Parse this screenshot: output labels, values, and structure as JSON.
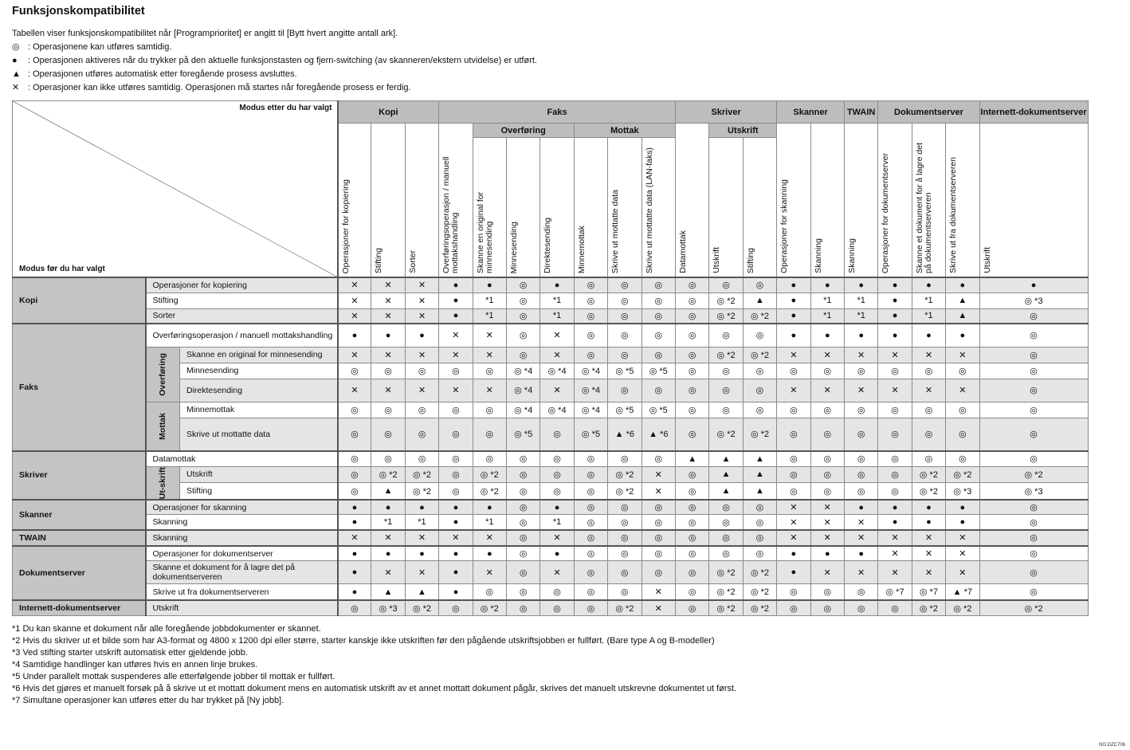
{
  "title": "Funksjonskompatibilitet",
  "intro": "Tabellen viser funksjonskompatibilitet når [Programprioritet] er angitt til [Bytt hvert angitte antall ark].",
  "legend": [
    {
      "icon": "double-circle-icon",
      "symbol": "◎",
      "text": ": Operasjonene kan utføres samtidig."
    },
    {
      "icon": "filled-circle-icon",
      "symbol": "●",
      "text": ": Operasjonen aktiveres når du trykker på den aktuelle funksjonstasten og fjern-switching (av skanneren/ekstern utvidelse) er utført."
    },
    {
      "icon": "triangle-icon",
      "symbol": "▲",
      "text": ":  Operasjonen utføres automatisk etter foregående prosess avsluttes."
    },
    {
      "icon": "cross-icon",
      "symbol": "✕",
      "text": ": Operasjoner kan ikke utføres samtidig. Operasjonen må startes når foregående prosess er ferdig."
    }
  ],
  "table": {
    "corner_after": "Modus etter du har valgt",
    "corner_before": "Modus før du har valgt",
    "columns": [
      {
        "group": "Kopi",
        "sub": null,
        "label": "Operasjoner for kopiering"
      },
      {
        "group": "Kopi",
        "sub": null,
        "label": "Stifting"
      },
      {
        "group": "Kopi",
        "sub": null,
        "label": "Sorter"
      },
      {
        "group": "Faks",
        "sub": null,
        "label": "Overføringsoperasjon / manuell mottakshandling"
      },
      {
        "group": "Faks",
        "sub": "Overføring",
        "label": "Skanne en original for minnesending"
      },
      {
        "group": "Faks",
        "sub": "Overføring",
        "label": "Minnesending"
      },
      {
        "group": "Faks",
        "sub": "Overføring",
        "label": "Direktesending"
      },
      {
        "group": "Faks",
        "sub": "Mottak",
        "label": "Minnemottak"
      },
      {
        "group": "Faks",
        "sub": "Mottak",
        "label": "Skrive ut mottatte data"
      },
      {
        "group": "Faks",
        "sub": "Mottak",
        "label": "Skrive ut mottatte data (LAN-faks)"
      },
      {
        "group": "Skriver",
        "sub": null,
        "label": "Datamottak"
      },
      {
        "group": "Skriver",
        "sub": "Utskrift",
        "label": "Utskrift"
      },
      {
        "group": "Skriver",
        "sub": "Utskrift",
        "label": "Stifting"
      },
      {
        "group": "Skanner",
        "sub": null,
        "label": "Operasjoner for skanning"
      },
      {
        "group": "Skanner",
        "sub": null,
        "label": "Skanning"
      },
      {
        "group": "TWAIN",
        "sub": null,
        "label": "Skanning"
      },
      {
        "group": "Dokumentserver",
        "sub": null,
        "label": "Operasjoner for dokumentserver"
      },
      {
        "group": "Dokumentserver",
        "sub": null,
        "label": "Skanne et dokument for å lagre det på dokumentserveren"
      },
      {
        "group": "Dokumentserver",
        "sub": null,
        "label": "Skrive ut fra dokumentserveren"
      },
      {
        "group": "Internett-dokumentserver",
        "sub": null,
        "label": "Utskrift"
      }
    ],
    "rows": [
      {
        "group": "Kopi",
        "sub": null,
        "label": "Operasjoner for kopiering",
        "cells": [
          "✕",
          "✕",
          "✕",
          "●",
          "●",
          "◎",
          "●",
          "◎",
          "◎",
          "◎",
          "◎",
          "◎",
          "◎",
          "●",
          "●",
          "●",
          "●",
          "●",
          "●",
          "●"
        ]
      },
      {
        "group": "Kopi",
        "sub": null,
        "label": "Stifting",
        "cells": [
          "✕",
          "✕",
          "✕",
          "●",
          "*1",
          "◎",
          "*1",
          "◎",
          "◎",
          "◎",
          "◎",
          "◎ *2",
          "▲",
          "●",
          "*1",
          "*1",
          "●",
          "*1",
          "▲",
          "◎ *3"
        ]
      },
      {
        "group": "Kopi",
        "sub": null,
        "label": "Sorter",
        "cells": [
          "✕",
          "✕",
          "✕",
          "●",
          "*1",
          "◎",
          "*1",
          "◎",
          "◎",
          "◎",
          "◎",
          "◎ *2",
          "◎ *2",
          "●",
          "*1",
          "*1",
          "●",
          "*1",
          "▲",
          "◎"
        ]
      },
      {
        "group": "Faks",
        "sub": null,
        "label": "Overføringsoperasjon / manuell mottakshandling",
        "cells": [
          "●",
          "●",
          "●",
          "✕",
          "✕",
          "◎",
          "✕",
          "◎",
          "◎",
          "◎",
          "◎",
          "◎",
          "◎",
          "●",
          "●",
          "●",
          "●",
          "●",
          "●",
          "◎"
        ]
      },
      {
        "group": "Faks",
        "sub": "Overføring",
        "label": "Skanne en original for minnesending",
        "cells": [
          "✕",
          "✕",
          "✕",
          "✕",
          "✕",
          "◎",
          "✕",
          "◎",
          "◎",
          "◎",
          "◎",
          "◎ *2",
          "◎ *2",
          "✕",
          "✕",
          "✕",
          "✕",
          "✕",
          "✕",
          "◎"
        ]
      },
      {
        "group": "Faks",
        "sub": "Overføring",
        "label": "Minnesending",
        "cells": [
          "◎",
          "◎",
          "◎",
          "◎",
          "◎",
          "◎ *4",
          "◎ *4",
          "◎ *4",
          "◎ *5",
          "◎ *5",
          "◎",
          "◎",
          "◎",
          "◎",
          "◎",
          "◎",
          "◎",
          "◎",
          "◎",
          "◎"
        ]
      },
      {
        "group": "Faks",
        "sub": "Overføring",
        "label": "Direktesending",
        "cells": [
          "✕",
          "✕",
          "✕",
          "✕",
          "✕",
          "◎ *4",
          "✕",
          "◎ *4",
          "◎",
          "◎",
          "◎",
          "◎",
          "◎",
          "✕",
          "✕",
          "✕",
          "✕",
          "✕",
          "✕",
          "◎"
        ]
      },
      {
        "group": "Faks",
        "sub": "Mottak",
        "label": "Minnemottak",
        "cells": [
          "◎",
          "◎",
          "◎",
          "◎",
          "◎",
          "◎ *4",
          "◎ *4",
          "◎ *4",
          "◎ *5",
          "◎ *5",
          "◎",
          "◎",
          "◎",
          "◎",
          "◎",
          "◎",
          "◎",
          "◎",
          "◎",
          "◎"
        ]
      },
      {
        "group": "Faks",
        "sub": "Mottak",
        "label": "Skrive ut mottatte data",
        "cells": [
          "◎",
          "◎",
          "◎",
          "◎",
          "◎",
          "◎ *5",
          "◎",
          "◎ *5",
          "▲ *6",
          "▲ *6",
          "◎",
          "◎ *2",
          "◎ *2",
          "◎",
          "◎",
          "◎",
          "◎",
          "◎",
          "◎",
          "◎"
        ]
      },
      {
        "group": "Skriver",
        "sub": null,
        "label": "Datamottak",
        "cells": [
          "◎",
          "◎",
          "◎",
          "◎",
          "◎",
          "◎",
          "◎",
          "◎",
          "◎",
          "◎",
          "▲",
          "▲",
          "▲",
          "◎",
          "◎",
          "◎",
          "◎",
          "◎",
          "◎",
          "◎"
        ]
      },
      {
        "group": "Skriver",
        "sub": "Ut-skrift",
        "label": "Utskrift",
        "cells": [
          "◎",
          "◎ *2",
          "◎ *2",
          "◎",
          "◎ *2",
          "◎",
          "◎",
          "◎",
          "◎ *2",
          "✕",
          "◎",
          "▲",
          "▲",
          "◎",
          "◎",
          "◎",
          "◎",
          "◎ *2",
          "◎ *2",
          "◎ *2"
        ]
      },
      {
        "group": "Skriver",
        "sub": "Ut-skrift",
        "label": "Stifting",
        "cells": [
          "◎",
          "▲",
          "◎ *2",
          "◎",
          "◎ *2",
          "◎",
          "◎",
          "◎",
          "◎ *2",
          "✕",
          "◎",
          "▲",
          "▲",
          "◎",
          "◎",
          "◎",
          "◎",
          "◎ *2",
          "◎ *3",
          "◎ *3"
        ]
      },
      {
        "group": "Skanner",
        "sub": null,
        "label": "Operasjoner for skanning",
        "cells": [
          "●",
          "●",
          "●",
          "●",
          "●",
          "◎",
          "●",
          "◎",
          "◎",
          "◎",
          "◎",
          "◎",
          "◎",
          "✕",
          "✕",
          "●",
          "●",
          "●",
          "●",
          "◎"
        ]
      },
      {
        "group": "Skanner",
        "sub": null,
        "label": "Skanning",
        "cells": [
          "●",
          "*1",
          "*1",
          "●",
          "*1",
          "◎",
          "*1",
          "◎",
          "◎",
          "◎",
          "◎",
          "◎",
          "◎",
          "✕",
          "✕",
          "✕",
          "●",
          "●",
          "●",
          "◎"
        ]
      },
      {
        "group": "TWAIN",
        "sub": null,
        "label": "Skanning",
        "cells": [
          "✕",
          "✕",
          "✕",
          "✕",
          "✕",
          "◎",
          "✕",
          "◎",
          "◎",
          "◎",
          "◎",
          "◎",
          "◎",
          "✕",
          "✕",
          "✕",
          "✕",
          "✕",
          "✕",
          "◎"
        ]
      },
      {
        "group": "Dokumentserver",
        "sub": null,
        "label": "Operasjoner for dokumentserver",
        "cells": [
          "●",
          "●",
          "●",
          "●",
          "●",
          "◎",
          "●",
          "◎",
          "◎",
          "◎",
          "◎",
          "◎",
          "◎",
          "●",
          "●",
          "●",
          "✕",
          "✕",
          "✕",
          "◎"
        ]
      },
      {
        "group": "Dokumentserver",
        "sub": null,
        "label": "Skanne et dokument for å lagre det på dokumentserveren",
        "cells": [
          "●",
          "✕",
          "✕",
          "●",
          "✕",
          "◎",
          "✕",
          "◎",
          "◎",
          "◎",
          "◎",
          "◎ *2",
          "◎ *2",
          "●",
          "✕",
          "✕",
          "✕",
          "✕",
          "✕",
          "◎"
        ]
      },
      {
        "group": "Dokumentserver",
        "sub": null,
        "label": "Skrive ut fra dokumentserveren",
        "cells": [
          "●",
          "▲",
          "▲",
          "●",
          "◎",
          "◎",
          "◎",
          "◎",
          "◎",
          "✕",
          "◎",
          "◎ *2",
          "◎ *2",
          "◎",
          "◎",
          "◎",
          "◎ *7",
          "◎ *7",
          "▲ *7",
          "◎"
        ]
      },
      {
        "group": "Internett-dokumentserver",
        "sub": null,
        "label": "Utskrift",
        "cells": [
          "◎",
          "◎ *3",
          "◎ *2",
          "◎",
          "◎ *2",
          "◎",
          "◎",
          "◎",
          "◎ *2",
          "✕",
          "◎",
          "◎ *2",
          "◎ *2",
          "◎",
          "◎",
          "◎",
          "◎",
          "◎ *2",
          "◎ *2",
          "◎ *2"
        ]
      }
    ]
  },
  "footnotes": [
    "*1 Du kan skanne et dokument når alle foregående jobbdokumenter er skannet.",
    "*2 Hvis du skriver ut et bilde som har A3-format og 4800 x 1200 dpi eller større, starter kanskje ikke utskriften før den pågående utskriftsjobben er fullført. (Bare type A og B-modeller)",
    "*3 Ved stifting starter utskrift automatisk etter gjeldende jobb.",
    "*4 Samtidige handlinger kan utføres hvis en annen linje brukes.",
    "*5 Under parallelt mottak suspenderes alle etterfølgende jobber til mottak er fullført.",
    "*6 Hvis det gjøres et manuelt forsøk på å skrive ut et mottatt dokument mens en automatisk utskrift av et annet mottatt dokument pågår, skrives det manuelt utskrevne dokumentet ut først.",
    "*7 Simultane operasjoner kan utføres etter du har trykket på [Ny jobb]."
  ],
  "figure_code": "NO DZC706"
}
